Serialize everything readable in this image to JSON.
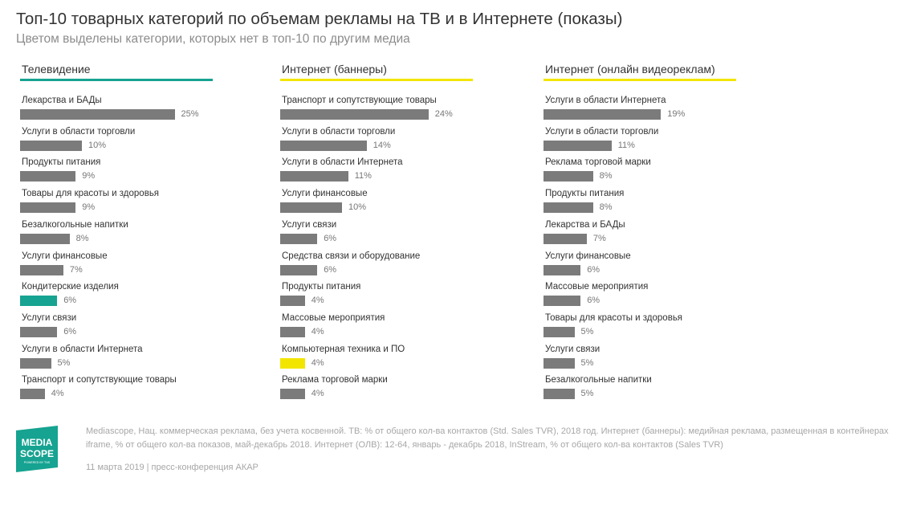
{
  "header": {
    "title": "Топ-10 товарных категорий по объемам рекламы на ТВ и в Интернете (показы)",
    "subtitle": "Цветом выделены категории, которых нет в топ-10 по другим медиа"
  },
  "colors": {
    "bar": "#7b7b7b",
    "teal": "#16a391",
    "yellow": "#f2e600"
  },
  "chart_data": [
    {
      "type": "bar",
      "title": "Телевидение",
      "categories": [
        "Лекарства и БАДы",
        "Услуги в области торговли",
        "Продукты питания",
        "Товары для красоты и здоровья",
        "Безалкогольные напитки",
        "Услуги финансовые",
        "Кондитерские изделия",
        "Услуги связи",
        "Услуги в области Интернета",
        "Транспорт и сопутствующие товары"
      ],
      "values": [
        25,
        10,
        9,
        9,
        8,
        7,
        6,
        6,
        5,
        4
      ],
      "labels": [
        "25%",
        "10%",
        "9%",
        "9%",
        "8%",
        "7%",
        "6%",
        "6%",
        "5%",
        "4%"
      ],
      "highlight": [
        6
      ],
      "highlight_color": "#16a391",
      "underline_color": "#16a391"
    },
    {
      "type": "bar",
      "title": "Интернет (баннеры)",
      "categories": [
        "Транспорт и сопутствующие товары",
        "Услуги в области торговли",
        "Услуги в области Интернета",
        "Услуги финансовые",
        "Услуги связи",
        "Средства связи и оборудование",
        "Продукты питания",
        "Массовые мероприятия",
        "Компьютерная техника и ПО",
        "Реклама торговой марки"
      ],
      "values": [
        24,
        14,
        11,
        10,
        6,
        6,
        4,
        4,
        4,
        4
      ],
      "labels": [
        "24%",
        "14%",
        "11%",
        "10%",
        "6%",
        "6%",
        "4%",
        "4%",
        "4%",
        "4%"
      ],
      "highlight": [
        8
      ],
      "highlight_color": "#f2e600",
      "underline_color": "#f2e600"
    },
    {
      "type": "bar",
      "title": "Интернет (онлайн видеореклам)",
      "categories": [
        "Услуги в области Интернета",
        "Услуги в области торговли",
        "Реклама торговой марки",
        "Продукты питания",
        "Лекарства и БАДы",
        "Услуги финансовые",
        "Массовые мероприятия",
        "Товары для красоты и здоровья",
        "Услуги связи",
        "Безалкогольные напитки"
      ],
      "values": [
        19,
        11,
        8,
        8,
        7,
        6,
        6,
        5,
        5,
        5
      ],
      "labels": [
        "19%",
        "11%",
        "8%",
        "8%",
        "7%",
        "6%",
        "6%",
        "5%",
        "5%",
        "5%"
      ],
      "highlight": [],
      "highlight_color": "#f2e600",
      "underline_color": "#f2e600"
    }
  ],
  "footer": {
    "logo_line1": "MEDIA",
    "logo_line2": "SCOPE",
    "logo_tag": "POWERED BY TNS",
    "source": "Mediascope, Нац. коммерческая реклама, без учета косвенной. ТВ: % от общего кол-ва контактов (Std. Sales TVR), 2018 год. Интернет (баннеры): медийная реклама, размещенная в контейнерах iframe, % от общего кол-ва показов, май-декабрь 2018. Интернет (ОЛВ): 12-64, январь - декабрь 2018, InStream, % от общего кол-ва контактов (Sales TVR)",
    "date": "11 марта 2019 | пресс-конференция АКАР"
  }
}
